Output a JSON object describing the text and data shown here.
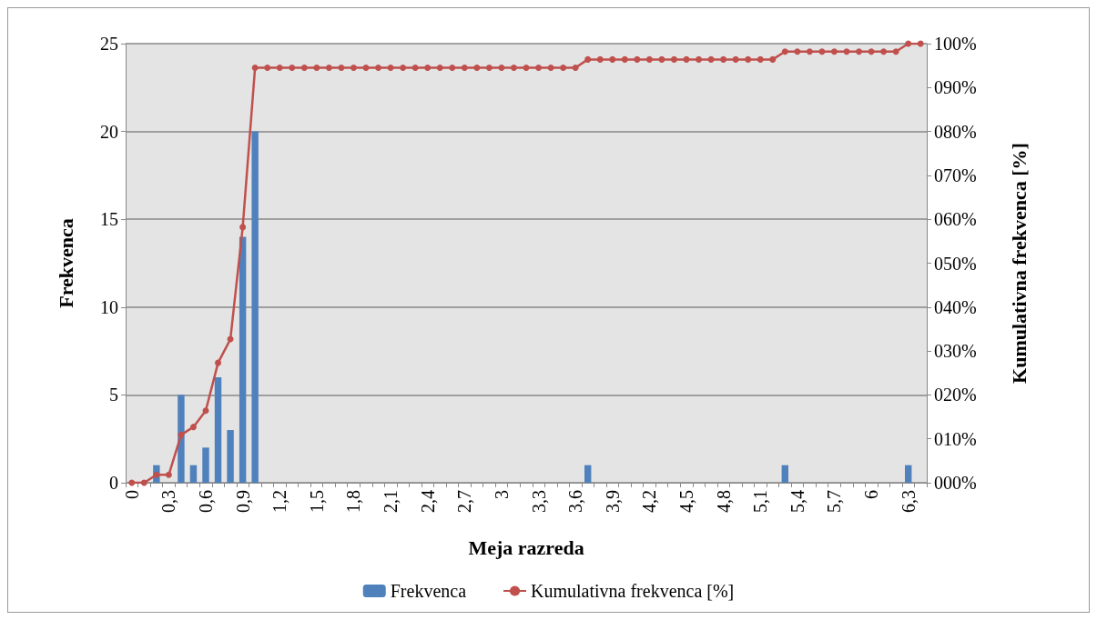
{
  "chart_data": {
    "type": "bar",
    "xlabel": "Meja razreda",
    "ylabel": "Frekvenca",
    "y2label": "Kumulativna frekvenca [%]",
    "categories": [
      "0",
      null,
      null,
      "0,3",
      null,
      null,
      "0,6",
      null,
      null,
      "0,9",
      null,
      null,
      "1,2",
      null,
      null,
      "1,5",
      null,
      null,
      "1,8",
      null,
      null,
      "2,1",
      null,
      null,
      "2,4",
      null,
      null,
      "2,7",
      null,
      null,
      "3",
      null,
      null,
      "3,3",
      null,
      null,
      "3,6",
      null,
      null,
      "3,9",
      null,
      null,
      "4,2",
      null,
      null,
      "4,5",
      null,
      null,
      "4,8",
      null,
      null,
      "5,1",
      null,
      null,
      "5,4",
      null,
      null,
      "5,7",
      null,
      null,
      "6",
      null,
      null,
      "6,3",
      null
    ],
    "series": [
      {
        "name": "Frekvenca",
        "color": "#4f81bd",
        "values": [
          0,
          0,
          1,
          0,
          5,
          1,
          2,
          6,
          3,
          14,
          20,
          0,
          0,
          0,
          0,
          0,
          0,
          0,
          0,
          0,
          0,
          0,
          0,
          0,
          0,
          0,
          0,
          0,
          0,
          0,
          0,
          0,
          0,
          0,
          0,
          0,
          0,
          1,
          0,
          0,
          0,
          0,
          0,
          0,
          0,
          0,
          0,
          0,
          0,
          0,
          0,
          0,
          0,
          1,
          0,
          0,
          0,
          0,
          0,
          0,
          0,
          0,
          0,
          1,
          0
        ]
      },
      {
        "name": "Kumulativna frekvenca [%]",
        "type": "line",
        "axis": "y2",
        "color": "#c0504d",
        "marker": "circle",
        "values": [
          0,
          0,
          1.8,
          1.8,
          10.9,
          12.7,
          16.4,
          27.3,
          32.7,
          58.2,
          94.5,
          94.5,
          94.5,
          94.5,
          94.5,
          94.5,
          94.5,
          94.5,
          94.5,
          94.5,
          94.5,
          94.5,
          94.5,
          94.5,
          94.5,
          94.5,
          94.5,
          94.5,
          94.5,
          94.5,
          94.5,
          94.5,
          94.5,
          94.5,
          94.5,
          94.5,
          94.5,
          96.4,
          96.4,
          96.4,
          96.4,
          96.4,
          96.4,
          96.4,
          96.4,
          96.4,
          96.4,
          96.4,
          96.4,
          96.4,
          96.4,
          96.4,
          96.4,
          98.2,
          98.2,
          98.2,
          98.2,
          98.2,
          98.2,
          98.2,
          98.2,
          98.2,
          98.2,
          100,
          100
        ]
      }
    ],
    "ylim": [
      0,
      25
    ],
    "yticks": [
      0,
      5,
      10,
      15,
      20,
      25
    ],
    "y2lim": [
      0,
      100
    ],
    "y2ticks": [
      {
        "value": 0,
        "label": "000%"
      },
      {
        "value": 10,
        "label": "010%"
      },
      {
        "value": 20,
        "label": "020%"
      },
      {
        "value": 30,
        "label": "030%"
      },
      {
        "value": 40,
        "label": "040%"
      },
      {
        "value": 50,
        "label": "050%"
      },
      {
        "value": 60,
        "label": "060%"
      },
      {
        "value": 70,
        "label": "070%"
      },
      {
        "value": 80,
        "label": "080%"
      },
      {
        "value": 90,
        "label": "090%"
      },
      {
        "value": 100,
        "label": "100%"
      }
    ],
    "grid": "y",
    "legend": "bottom"
  }
}
